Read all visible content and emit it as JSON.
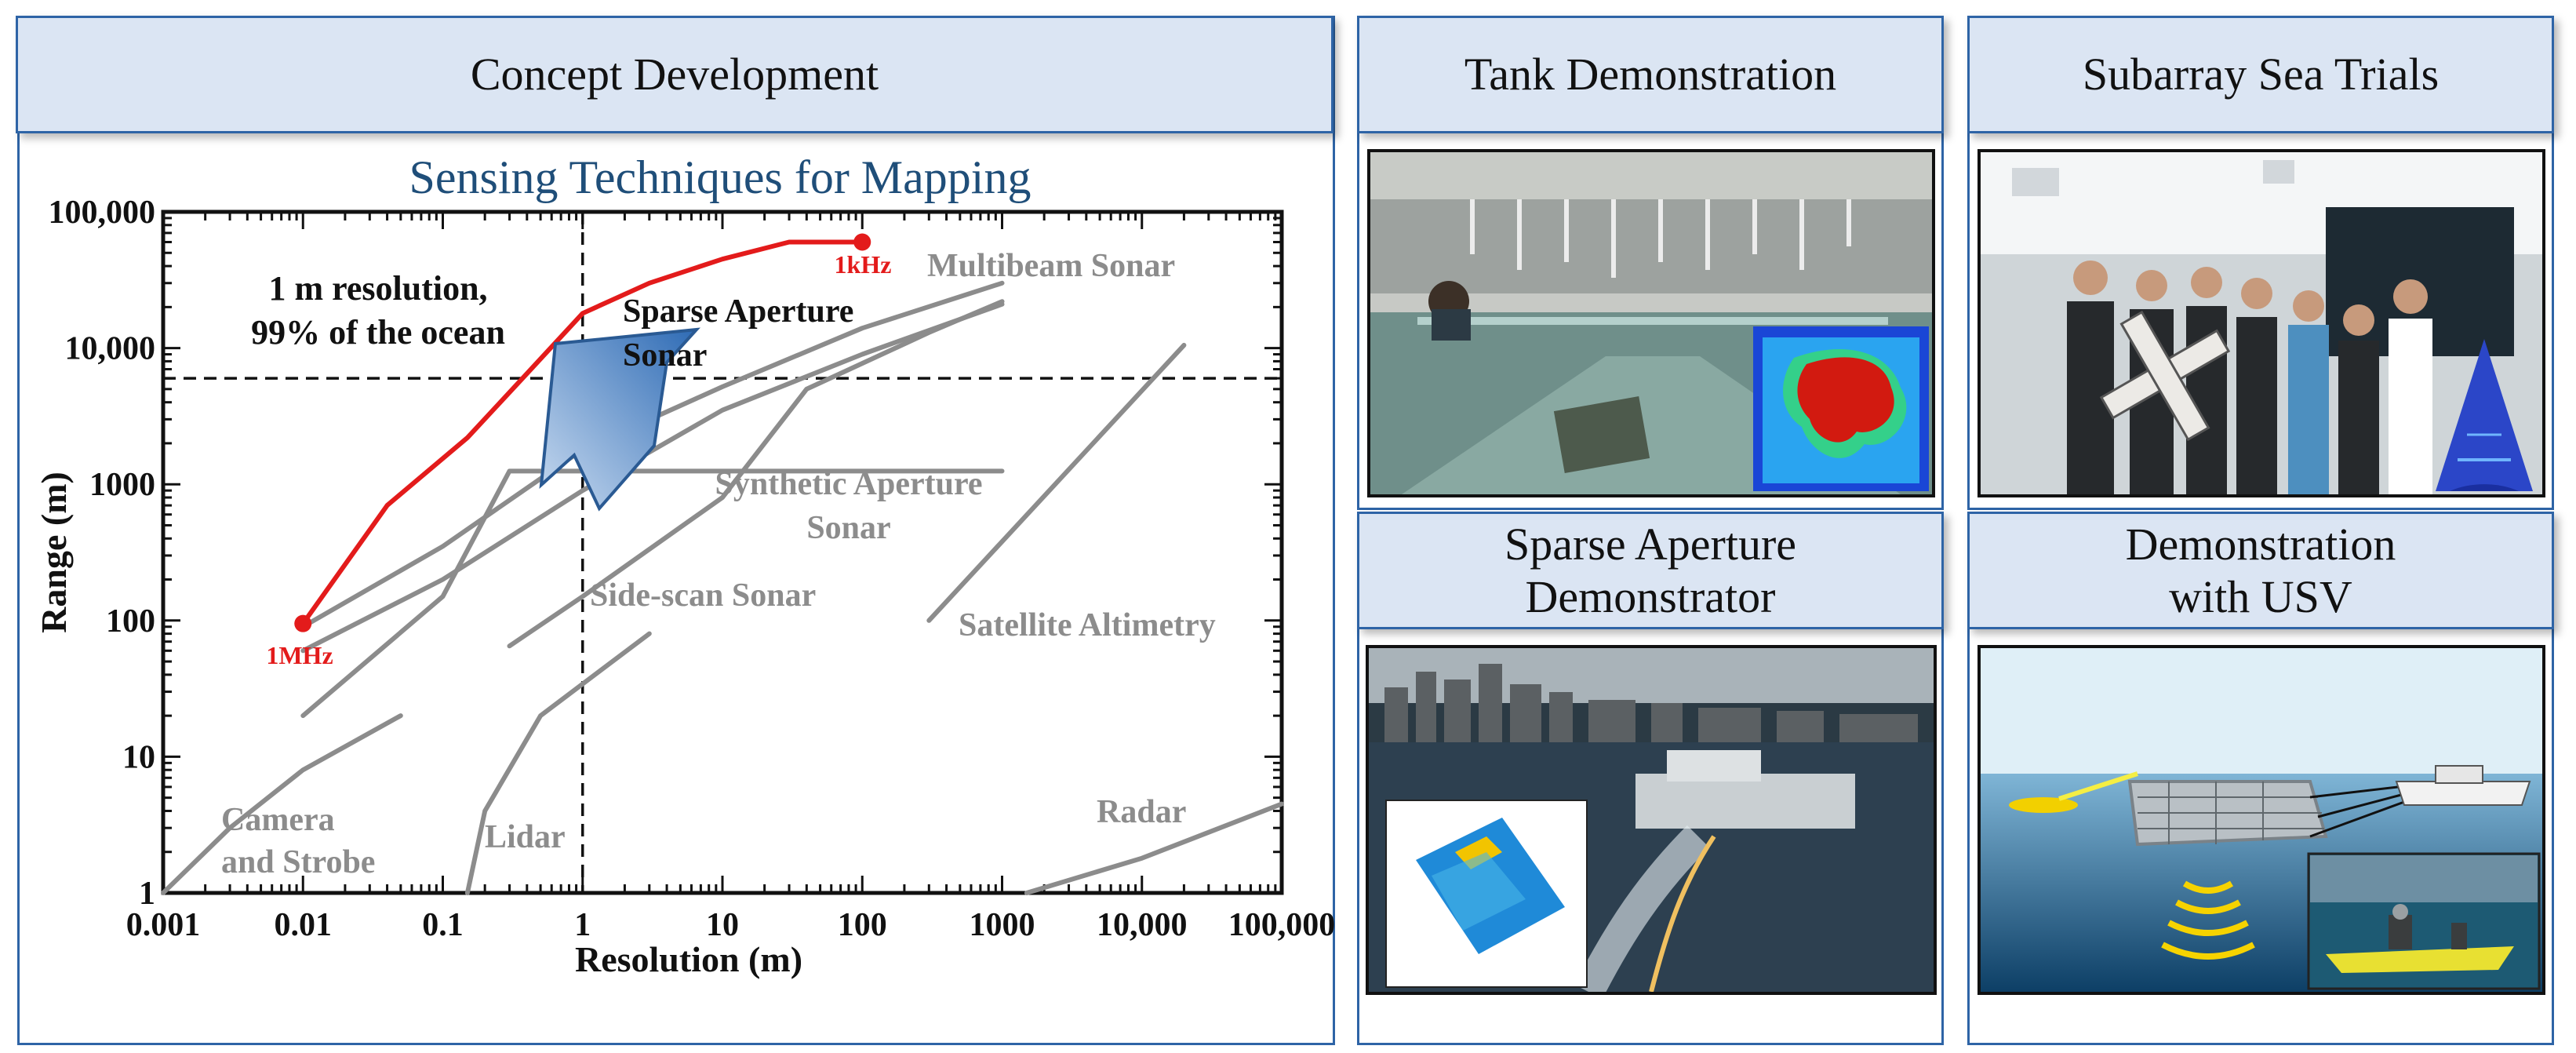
{
  "headers": {
    "concept": "Concept Development",
    "tank": "Tank Demonstration",
    "subarray": "Subarray Sea Trials",
    "sparse_l1": "Sparse Aperture",
    "sparse_l2": "Demonstrator",
    "usv_l1": "Demonstration",
    "usv_l2": "with USV"
  },
  "chart_data": {
    "type": "line",
    "title": "Sensing Techniques for Mapping",
    "xlabel": "Resolution (m)",
    "ylabel": "Range (m)",
    "x_scale": "log",
    "y_scale": "log",
    "xlim": [
      0.001,
      100000
    ],
    "ylim": [
      1,
      100000
    ],
    "x_ticks": [
      "0.001",
      "0.01",
      "0.1",
      "1",
      "10",
      "100",
      "1000",
      "10,000",
      "100,000"
    ],
    "y_ticks": [
      "1",
      "10",
      "100",
      "1000",
      "10,000",
      "100,000"
    ],
    "reference_lines": {
      "x": 1,
      "y": 6000
    },
    "annotation": {
      "line1": "1 m resolution,",
      "line2": "99% of the ocean"
    },
    "highlight": {
      "label_line1": "Sparse Aperture",
      "label_line2": "Sonar",
      "color": "#e31b1b",
      "start_label": "1MHz",
      "end_label": "1kHz",
      "points": [
        [
          0.01,
          95
        ],
        [
          0.04,
          700
        ],
        [
          0.15,
          2200
        ],
        [
          0.4,
          6500
        ],
        [
          1,
          18000
        ],
        [
          3,
          30000
        ],
        [
          10,
          45000
        ],
        [
          30,
          60000
        ],
        [
          100,
          60000
        ]
      ]
    },
    "series": [
      {
        "name": "Multibeam Sonar",
        "points": [
          [
            0.01,
            90
          ],
          [
            0.1,
            350
          ],
          [
            1,
            1800
          ],
          [
            10,
            5200
          ],
          [
            100,
            14000
          ],
          [
            1000,
            30000
          ]
        ]
      },
      {
        "name": "",
        "points": [
          [
            0.01,
            60
          ],
          [
            0.1,
            200
          ],
          [
            1,
            900
          ],
          [
            10,
            3500
          ],
          [
            100,
            9000
          ],
          [
            1000,
            21000
          ]
        ]
      },
      {
        "name": "Synthetic Aperture Sonar",
        "points": [
          [
            0.01,
            20
          ],
          [
            0.1,
            150
          ],
          [
            0.3,
            1250
          ],
          [
            1000,
            1250
          ]
        ]
      },
      {
        "name": "Side-scan Sonar",
        "points": [
          [
            0.3,
            65
          ],
          [
            1,
            150
          ],
          [
            10,
            800
          ],
          [
            40,
            5000
          ],
          [
            300,
            13000
          ],
          [
            1000,
            22000
          ]
        ]
      },
      {
        "name": "Satellite Altimetry",
        "points": [
          [
            300,
            100
          ],
          [
            20000,
            10500
          ]
        ]
      },
      {
        "name": "Camera and Strobe",
        "points": [
          [
            0.001,
            1
          ],
          [
            0.003,
            3
          ],
          [
            0.01,
            8
          ],
          [
            0.05,
            20
          ]
        ]
      },
      {
        "name": "Lidar",
        "points": [
          [
            0.15,
            1
          ],
          [
            0.2,
            4
          ],
          [
            0.5,
            20
          ],
          [
            3,
            80
          ]
        ]
      },
      {
        "name": "Radar",
        "points": [
          [
            1500,
            1
          ],
          [
            10000,
            1.8
          ],
          [
            100000,
            4.5
          ]
        ]
      }
    ],
    "series_labels": [
      {
        "text": "Multibeam Sonar"
      },
      {
        "text": "Synthetic Aperture"
      },
      {
        "text": "Sonar"
      },
      {
        "text": "Side-scan Sonar"
      },
      {
        "text": "Satellite Altimetry"
      },
      {
        "text": "Camera"
      },
      {
        "text": "and Strobe"
      },
      {
        "text": "Lidar"
      },
      {
        "text": "Radar"
      }
    ]
  }
}
